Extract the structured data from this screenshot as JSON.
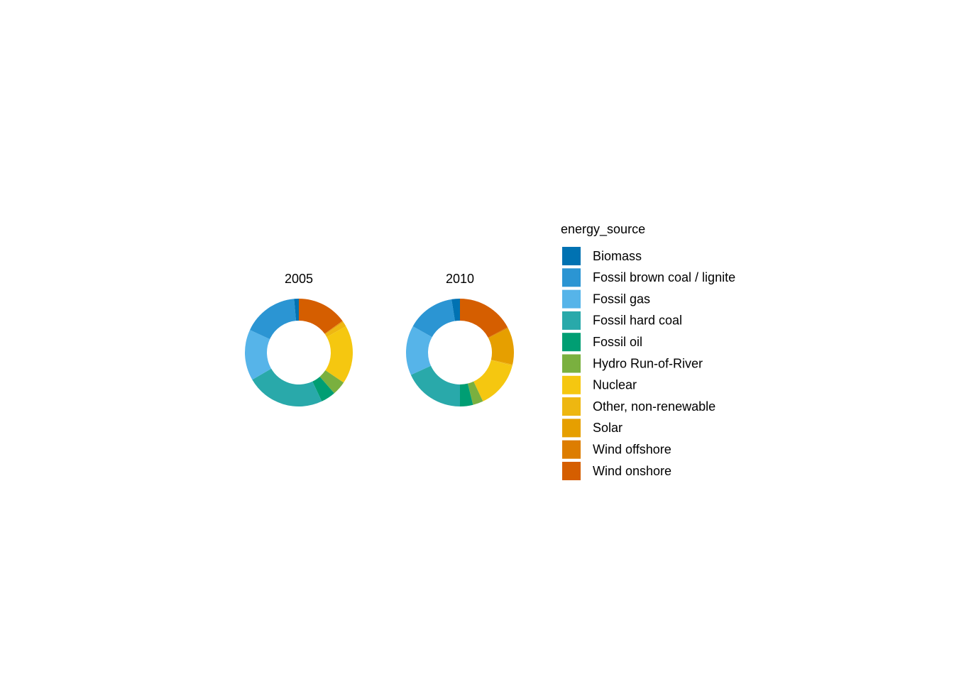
{
  "chart_data": [
    {
      "type": "donut",
      "title": "2005",
      "categories": [
        "Wind onshore",
        "Wind offshore",
        "Solar",
        "Other, non-renewable",
        "Nuclear",
        "Hydro Run-of-River",
        "Fossil oil",
        "Fossil hard coal",
        "Fossil gas",
        "Fossil brown coal / lignite",
        "Biomass"
      ],
      "values": [
        15.0,
        0.1,
        0.3,
        1.5,
        17.5,
        4.2,
        4.4,
        23.6,
        15.3,
        16.7,
        1.4
      ],
      "colors": [
        "#D55E00",
        "#DD7D00",
        "#E69F00",
        "#EEB711",
        "#F5C710",
        "#7AB03F",
        "#009E73",
        "#29A9AA",
        "#56B4E9",
        "#2B95D3",
        "#0072B2"
      ]
    },
    {
      "type": "donut",
      "title": "2010",
      "categories": [
        "Wind onshore",
        "Wind offshore",
        "Solar",
        "Other, non-renewable",
        "Nuclear",
        "Hydro Run-of-River",
        "Fossil oil",
        "Fossil hard coal",
        "Fossil gas",
        "Fossil brown coal / lignite",
        "Biomass"
      ],
      "values": [
        17.2,
        0.3,
        11.1,
        0.3,
        14.1,
        3.1,
        3.9,
        18.2,
        14.9,
        14.4,
        2.5
      ],
      "colors": [
        "#D55E00",
        "#DD7D00",
        "#E69F00",
        "#EEB711",
        "#F5C710",
        "#7AB03F",
        "#009E73",
        "#29A9AA",
        "#56B4E9",
        "#2B95D3",
        "#0072B2"
      ]
    }
  ],
  "legend": {
    "title": "energy_source"
  }
}
